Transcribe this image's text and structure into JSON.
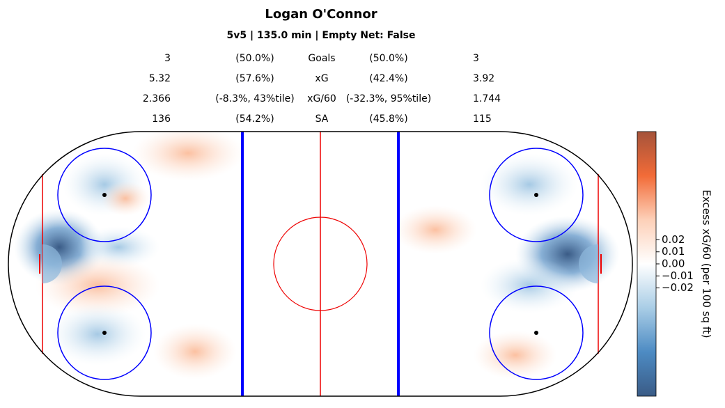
{
  "title": "Logan O'Connor",
  "subtitle": "5v5 | 135.0 min | Empty Net: False",
  "stats": [
    [
      "3",
      "(50.0%)",
      "Goals",
      "(50.0%)",
      "3"
    ],
    [
      "5.32",
      "(57.6%)",
      "xG",
      "(42.4%)",
      "3.92"
    ],
    [
      "2.366",
      "(-8.3%, 43%tile)",
      "xG/60",
      "(-32.3%, 95%tile)",
      "1.744"
    ],
    [
      "136",
      "(54.2%)",
      "SA",
      "(45.8%)",
      "115"
    ]
  ],
  "colorbar": {
    "label": "Excess xG/60 (per 100 sq ft)",
    "clim": [
      -0.11,
      0.11
    ],
    "ticks": [
      0.02,
      0.01,
      {
        "value": 0,
        "label": "0.00"
      },
      {
        "value": -0.01,
        "label": "−0.01"
      },
      {
        "value": -0.02,
        "label": "−0.02"
      }
    ],
    "colormap": [
      "#3a5b86",
      "#4d8bc3",
      "#a9cde6",
      "#ffffff",
      "#fdd0b8",
      "#f26b38",
      "#a5533a"
    ]
  }
}
